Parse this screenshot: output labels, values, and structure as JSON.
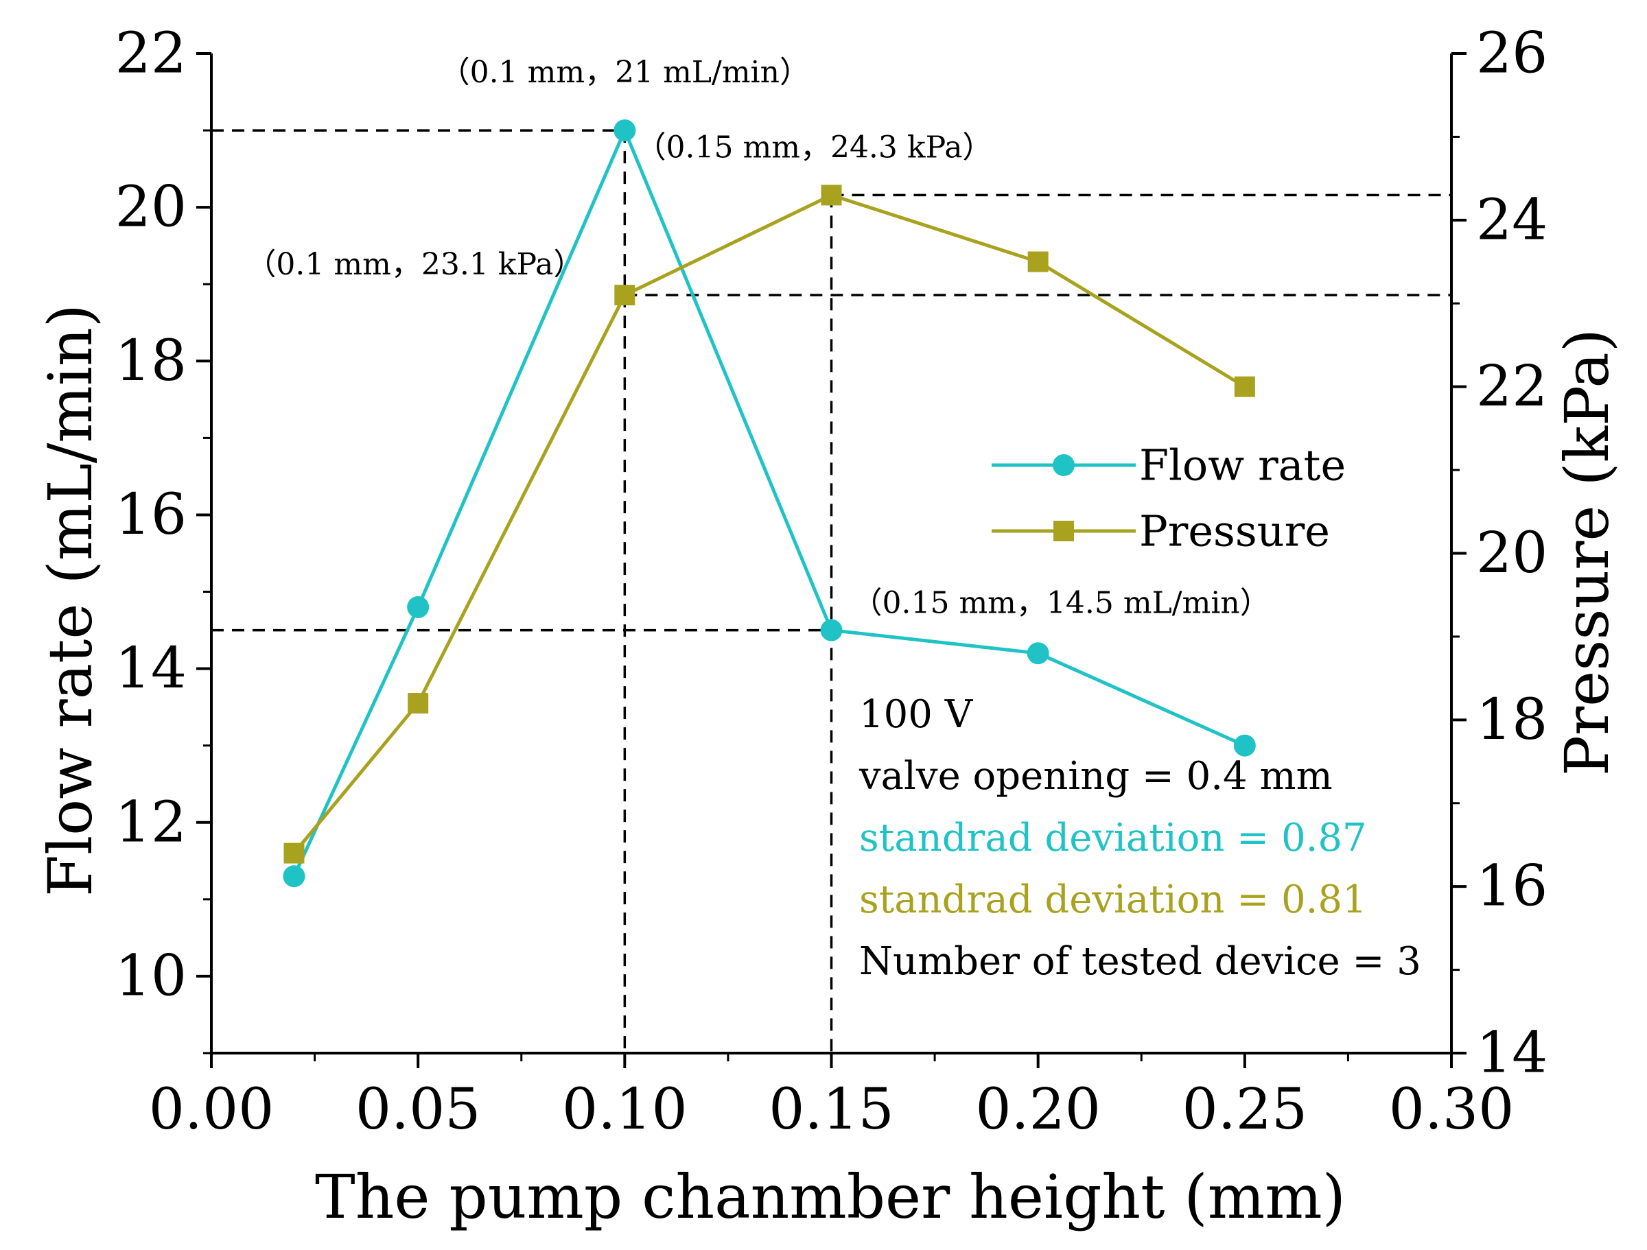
{
  "chart_data": {
    "type": "line",
    "title": "",
    "xlabel": "The pump chanmber height (mm)",
    "ylabel_left": "Flow rate (mL/min)",
    "ylabel_right": "Pressure (kPa)",
    "xlim": [
      0.0,
      0.3
    ],
    "ylim_left": [
      9,
      22
    ],
    "ylim_right": [
      14,
      26
    ],
    "x_ticks": [
      "0.00",
      "0.05",
      "0.10",
      "0.15",
      "0.20",
      "0.25",
      "0.30"
    ],
    "y_left_ticks": [
      "10",
      "12",
      "14",
      "16",
      "18",
      "20",
      "22"
    ],
    "y_right_ticks": [
      "14",
      "16",
      "18",
      "20",
      "22",
      "24",
      "26"
    ],
    "grid": false,
    "legend_position": "center-right",
    "series": [
      {
        "name": "Flow rate",
        "axis": "left",
        "marker": "circle",
        "color": "#1FC3C6",
        "x": [
          0.02,
          0.05,
          0.1,
          0.15,
          0.2,
          0.25
        ],
        "values": [
          11.3,
          14.8,
          21.0,
          14.5,
          14.2,
          13.0
        ]
      },
      {
        "name": "Pressure",
        "axis": "right",
        "marker": "square",
        "color": "#A9A21E",
        "x": [
          0.02,
          0.05,
          0.1,
          0.15,
          0.2,
          0.25
        ],
        "values": [
          16.4,
          18.2,
          23.1,
          24.3,
          23.5,
          22.0
        ]
      }
    ],
    "annotations": [
      {
        "text": "（0.1 mm，21 mL/min）",
        "x": 0.1,
        "value": 21.0,
        "axis": "left"
      },
      {
        "text": "（0.15 mm，24.3 kPa）",
        "x": 0.15,
        "value": 24.3,
        "axis": "right"
      },
      {
        "text": "（0.1 mm，23.1 kPa）",
        "x": 0.1,
        "value": 23.1,
        "axis": "right"
      },
      {
        "text": "（0.15 mm，14.5 mL/min）",
        "x": 0.15,
        "value": 14.5,
        "axis": "left"
      }
    ],
    "info_lines": [
      {
        "text": "100 V",
        "color": "#000000"
      },
      {
        "text": "valve opening = 0.4 mm",
        "color": "#000000"
      },
      {
        "text": "standrad deviation = 0.87",
        "color": "#1FC3C6"
      },
      {
        "text": "standrad deviation = 0.81",
        "color": "#A9A21E"
      },
      {
        "text": "Number of tested device = 3",
        "color": "#000000"
      }
    ]
  }
}
